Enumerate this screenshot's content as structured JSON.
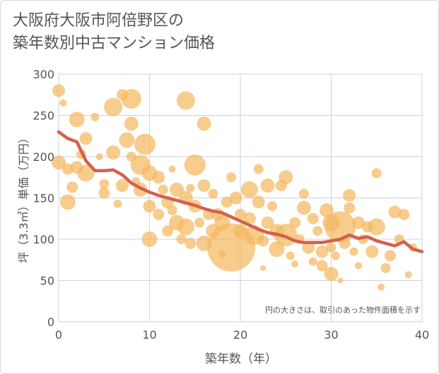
{
  "title_lines": [
    "大阪府大阪市阿倍野区の",
    "築年数別中古マンション価格"
  ],
  "chart_data": {
    "type": "scatter",
    "xlabel": "築年数（年）",
    "ylabel": "坪（3.3㎡）単価（万円）",
    "xlim": [
      0,
      40
    ],
    "ylim": [
      0,
      300
    ],
    "xticks": [
      0,
      10,
      20,
      30,
      40
    ],
    "yticks": [
      0,
      50,
      100,
      150,
      200,
      250,
      300
    ],
    "grid": true,
    "annotation": "円の大きさは、取引のあった物件面積を示す",
    "colors": {
      "bubble": "#f4b860",
      "line": "#d4604c",
      "grid": "#c9d3df",
      "axis_text": "#555555"
    },
    "trend": {
      "x": [
        0,
        1,
        2,
        3,
        4,
        5,
        6,
        7,
        8,
        9,
        10,
        11,
        12,
        13,
        14,
        15,
        16,
        17,
        18,
        19,
        20,
        21,
        22,
        23,
        24,
        25,
        26,
        27,
        28,
        29,
        30,
        31,
        32,
        33,
        34,
        35,
        36,
        37,
        38,
        39,
        40
      ],
      "y": [
        230,
        222,
        218,
        195,
        183,
        183,
        184,
        178,
        168,
        162,
        157,
        153,
        150,
        147,
        144,
        141,
        137,
        134,
        132,
        127,
        122,
        117,
        112,
        108,
        106,
        103,
        98,
        96,
        96,
        96,
        98,
        100,
        105,
        101,
        103,
        98,
        95,
        92,
        97,
        88,
        85
      ]
    },
    "points": [
      {
        "x": 0,
        "y": 280,
        "r": 9
      },
      {
        "x": 0,
        "y": 193,
        "r": 10
      },
      {
        "x": 0.5,
        "y": 265,
        "r": 5
      },
      {
        "x": 1,
        "y": 185,
        "r": 8
      },
      {
        "x": 1,
        "y": 145,
        "r": 11
      },
      {
        "x": 1.5,
        "y": 163,
        "r": 8
      },
      {
        "x": 2,
        "y": 245,
        "r": 11
      },
      {
        "x": 2,
        "y": 187,
        "r": 9
      },
      {
        "x": 2.5,
        "y": 203,
        "r": 7
      },
      {
        "x": 3,
        "y": 222,
        "r": 9
      },
      {
        "x": 3,
        "y": 180,
        "r": 12
      },
      {
        "x": 4,
        "y": 248,
        "r": 6
      },
      {
        "x": 5,
        "y": 156,
        "r": 8
      },
      {
        "x": 5,
        "y": 167,
        "r": 7
      },
      {
        "x": 6,
        "y": 205,
        "r": 10
      },
      {
        "x": 6,
        "y": 260,
        "r": 13
      },
      {
        "x": 7,
        "y": 275,
        "r": 8
      },
      {
        "x": 7,
        "y": 165,
        "r": 9
      },
      {
        "x": 7.5,
        "y": 220,
        "r": 11
      },
      {
        "x": 8,
        "y": 270,
        "r": 14
      },
      {
        "x": 8,
        "y": 240,
        "r": 10
      },
      {
        "x": 8,
        "y": 200,
        "r": 7
      },
      {
        "x": 8.5,
        "y": 170,
        "r": 6
      },
      {
        "x": 9,
        "y": 190,
        "r": 14
      },
      {
        "x": 9,
        "y": 160,
        "r": 10
      },
      {
        "x": 9.5,
        "y": 215,
        "r": 15
      },
      {
        "x": 10,
        "y": 140,
        "r": 9
      },
      {
        "x": 10,
        "y": 180,
        "r": 11
      },
      {
        "x": 10,
        "y": 100,
        "r": 11
      },
      {
        "x": 11,
        "y": 175,
        "r": 9
      },
      {
        "x": 11,
        "y": 130,
        "r": 8
      },
      {
        "x": 11.5,
        "y": 160,
        "r": 7
      },
      {
        "x": 12,
        "y": 145,
        "r": 9
      },
      {
        "x": 12,
        "y": 110,
        "r": 8
      },
      {
        "x": 12.5,
        "y": 135,
        "r": 7
      },
      {
        "x": 13,
        "y": 160,
        "r": 10
      },
      {
        "x": 13,
        "y": 120,
        "r": 11
      },
      {
        "x": 13.5,
        "y": 100,
        "r": 7
      },
      {
        "x": 14,
        "y": 268,
        "r": 13
      },
      {
        "x": 14,
        "y": 150,
        "r": 10
      },
      {
        "x": 14,
        "y": 115,
        "r": 12
      },
      {
        "x": 14.5,
        "y": 95,
        "r": 8
      },
      {
        "x": 15,
        "y": 190,
        "r": 15
      },
      {
        "x": 15,
        "y": 140,
        "r": 9
      },
      {
        "x": 15.5,
        "y": 120,
        "r": 7
      },
      {
        "x": 16,
        "y": 240,
        "r": 10
      },
      {
        "x": 16,
        "y": 165,
        "r": 9
      },
      {
        "x": 16,
        "y": 95,
        "r": 11
      },
      {
        "x": 16.5,
        "y": 130,
        "r": 8
      },
      {
        "x": 17,
        "y": 155,
        "r": 7
      },
      {
        "x": 17,
        "y": 110,
        "r": 10
      },
      {
        "x": 17.5,
        "y": 130,
        "r": 9
      },
      {
        "x": 18,
        "y": 120,
        "r": 11
      },
      {
        "x": 18.5,
        "y": 145,
        "r": 8
      },
      {
        "x": 19,
        "y": 90,
        "r": 34
      },
      {
        "x": 19,
        "y": 175,
        "r": 7
      },
      {
        "x": 19.5,
        "y": 150,
        "r": 9
      },
      {
        "x": 20,
        "y": 130,
        "r": 8
      },
      {
        "x": 20,
        "y": 110,
        "r": 10
      },
      {
        "x": 21,
        "y": 160,
        "r": 12
      },
      {
        "x": 21,
        "y": 125,
        "r": 9
      },
      {
        "x": 21.5,
        "y": 105,
        "r": 14
      },
      {
        "x": 22,
        "y": 185,
        "r": 7
      },
      {
        "x": 22,
        "y": 145,
        "r": 9
      },
      {
        "x": 22.5,
        "y": 98,
        "r": 8
      },
      {
        "x": 23,
        "y": 165,
        "r": 10
      },
      {
        "x": 23,
        "y": 120,
        "r": 9
      },
      {
        "x": 23.5,
        "y": 140,
        "r": 7
      },
      {
        "x": 24,
        "y": 110,
        "r": 10
      },
      {
        "x": 24,
        "y": 88,
        "r": 11
      },
      {
        "x": 24.5,
        "y": 165,
        "r": 8
      },
      {
        "x": 25,
        "y": 175,
        "r": 10
      },
      {
        "x": 25,
        "y": 105,
        "r": 16
      },
      {
        "x": 25.5,
        "y": 80,
        "r": 6
      },
      {
        "x": 26,
        "y": 120,
        "r": 8
      },
      {
        "x": 26.5,
        "y": 100,
        "r": 7
      },
      {
        "x": 27,
        "y": 155,
        "r": 7
      },
      {
        "x": 27,
        "y": 138,
        "r": 10
      },
      {
        "x": 27.5,
        "y": 90,
        "r": 9
      },
      {
        "x": 28,
        "y": 125,
        "r": 8
      },
      {
        "x": 28,
        "y": 73,
        "r": 6
      },
      {
        "x": 28.5,
        "y": 110,
        "r": 7
      },
      {
        "x": 29,
        "y": 85,
        "r": 9
      },
      {
        "x": 29,
        "y": 68,
        "r": 8
      },
      {
        "x": 29.5,
        "y": 135,
        "r": 10
      },
      {
        "x": 30,
        "y": 120,
        "r": 12
      },
      {
        "x": 30,
        "y": 58,
        "r": 10
      },
      {
        "x": 30,
        "y": 90,
        "r": 7
      },
      {
        "x": 30.5,
        "y": 80,
        "r": 6
      },
      {
        "x": 31,
        "y": 115,
        "r": 22
      },
      {
        "x": 31.5,
        "y": 95,
        "r": 8
      },
      {
        "x": 32,
        "y": 153,
        "r": 9
      },
      {
        "x": 32,
        "y": 138,
        "r": 8
      },
      {
        "x": 32.5,
        "y": 85,
        "r": 6
      },
      {
        "x": 33,
        "y": 120,
        "r": 9
      },
      {
        "x": 33.5,
        "y": 100,
        "r": 7
      },
      {
        "x": 34,
        "y": 115,
        "r": 8
      },
      {
        "x": 34.5,
        "y": 85,
        "r": 9
      },
      {
        "x": 35,
        "y": 180,
        "r": 7
      },
      {
        "x": 35,
        "y": 115,
        "r": 12
      },
      {
        "x": 35.5,
        "y": 42,
        "r": 5
      },
      {
        "x": 36,
        "y": 65,
        "r": 7
      },
      {
        "x": 36.5,
        "y": 80,
        "r": 8
      },
      {
        "x": 37,
        "y": 133,
        "r": 9
      },
      {
        "x": 37.5,
        "y": 100,
        "r": 7
      },
      {
        "x": 38,
        "y": 130,
        "r": 8
      },
      {
        "x": 38.5,
        "y": 57,
        "r": 5
      },
      {
        "x": 39,
        "y": 90,
        "r": 6
      },
      {
        "x": 18,
        "y": 82,
        "r": 5
      },
      {
        "x": 26,
        "y": 70,
        "r": 5
      },
      {
        "x": 33,
        "y": 68,
        "r": 5
      },
      {
        "x": 22.5,
        "y": 65,
        "r": 4
      },
      {
        "x": 31,
        "y": 50,
        "r": 4
      },
      {
        "x": 14.5,
        "y": 162,
        "r": 6
      },
      {
        "x": 12.5,
        "y": 185,
        "r": 5
      },
      {
        "x": 6.5,
        "y": 143,
        "r": 6
      },
      {
        "x": 4.5,
        "y": 200,
        "r": 5
      }
    ]
  }
}
